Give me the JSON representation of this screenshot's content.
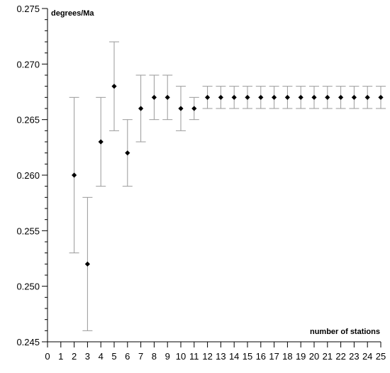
{
  "chart_data": {
    "type": "scatter",
    "title": "",
    "xlabel": "number of stations",
    "ylabel": "degrees/Ma",
    "xlim": [
      0,
      25
    ],
    "ylim": [
      0.245,
      0.275
    ],
    "x_ticks": [
      0,
      1,
      2,
      3,
      4,
      5,
      6,
      7,
      8,
      9,
      10,
      11,
      12,
      13,
      14,
      15,
      16,
      17,
      18,
      19,
      20,
      21,
      22,
      23,
      24,
      25
    ],
    "y_ticks": [
      0.245,
      0.25,
      0.255,
      0.26,
      0.265,
      0.27,
      0.275
    ],
    "y_tick_labels": [
      "0.245",
      "0.250",
      "0.255",
      "0.260",
      "0.265",
      "0.270",
      "0.275"
    ],
    "grid": false,
    "colors": {
      "marker": "#000000",
      "error_bar": "#9a9a9a",
      "axis": "#000000"
    },
    "series": [
      {
        "x": [
          2,
          3,
          4,
          5,
          6,
          7,
          8,
          9,
          10,
          11,
          12,
          13,
          14,
          15,
          16,
          17,
          18,
          19,
          20,
          21,
          22,
          23,
          24,
          25
        ],
        "y": [
          0.26,
          0.252,
          0.263,
          0.268,
          0.262,
          0.266,
          0.267,
          0.267,
          0.266,
          0.266,
          0.267,
          0.267,
          0.267,
          0.267,
          0.267,
          0.267,
          0.267,
          0.267,
          0.267,
          0.267,
          0.267,
          0.267,
          0.267,
          0.267
        ],
        "y_low": [
          0.253,
          0.246,
          0.259,
          0.264,
          0.259,
          0.263,
          0.265,
          0.265,
          0.264,
          0.265,
          0.266,
          0.266,
          0.266,
          0.266,
          0.266,
          0.266,
          0.266,
          0.266,
          0.266,
          0.266,
          0.266,
          0.266,
          0.266,
          0.266
        ],
        "y_high": [
          0.267,
          0.258,
          0.267,
          0.272,
          0.265,
          0.269,
          0.269,
          0.269,
          0.268,
          0.267,
          0.268,
          0.268,
          0.268,
          0.268,
          0.268,
          0.268,
          0.268,
          0.268,
          0.268,
          0.268,
          0.268,
          0.268,
          0.268,
          0.268
        ]
      }
    ]
  }
}
